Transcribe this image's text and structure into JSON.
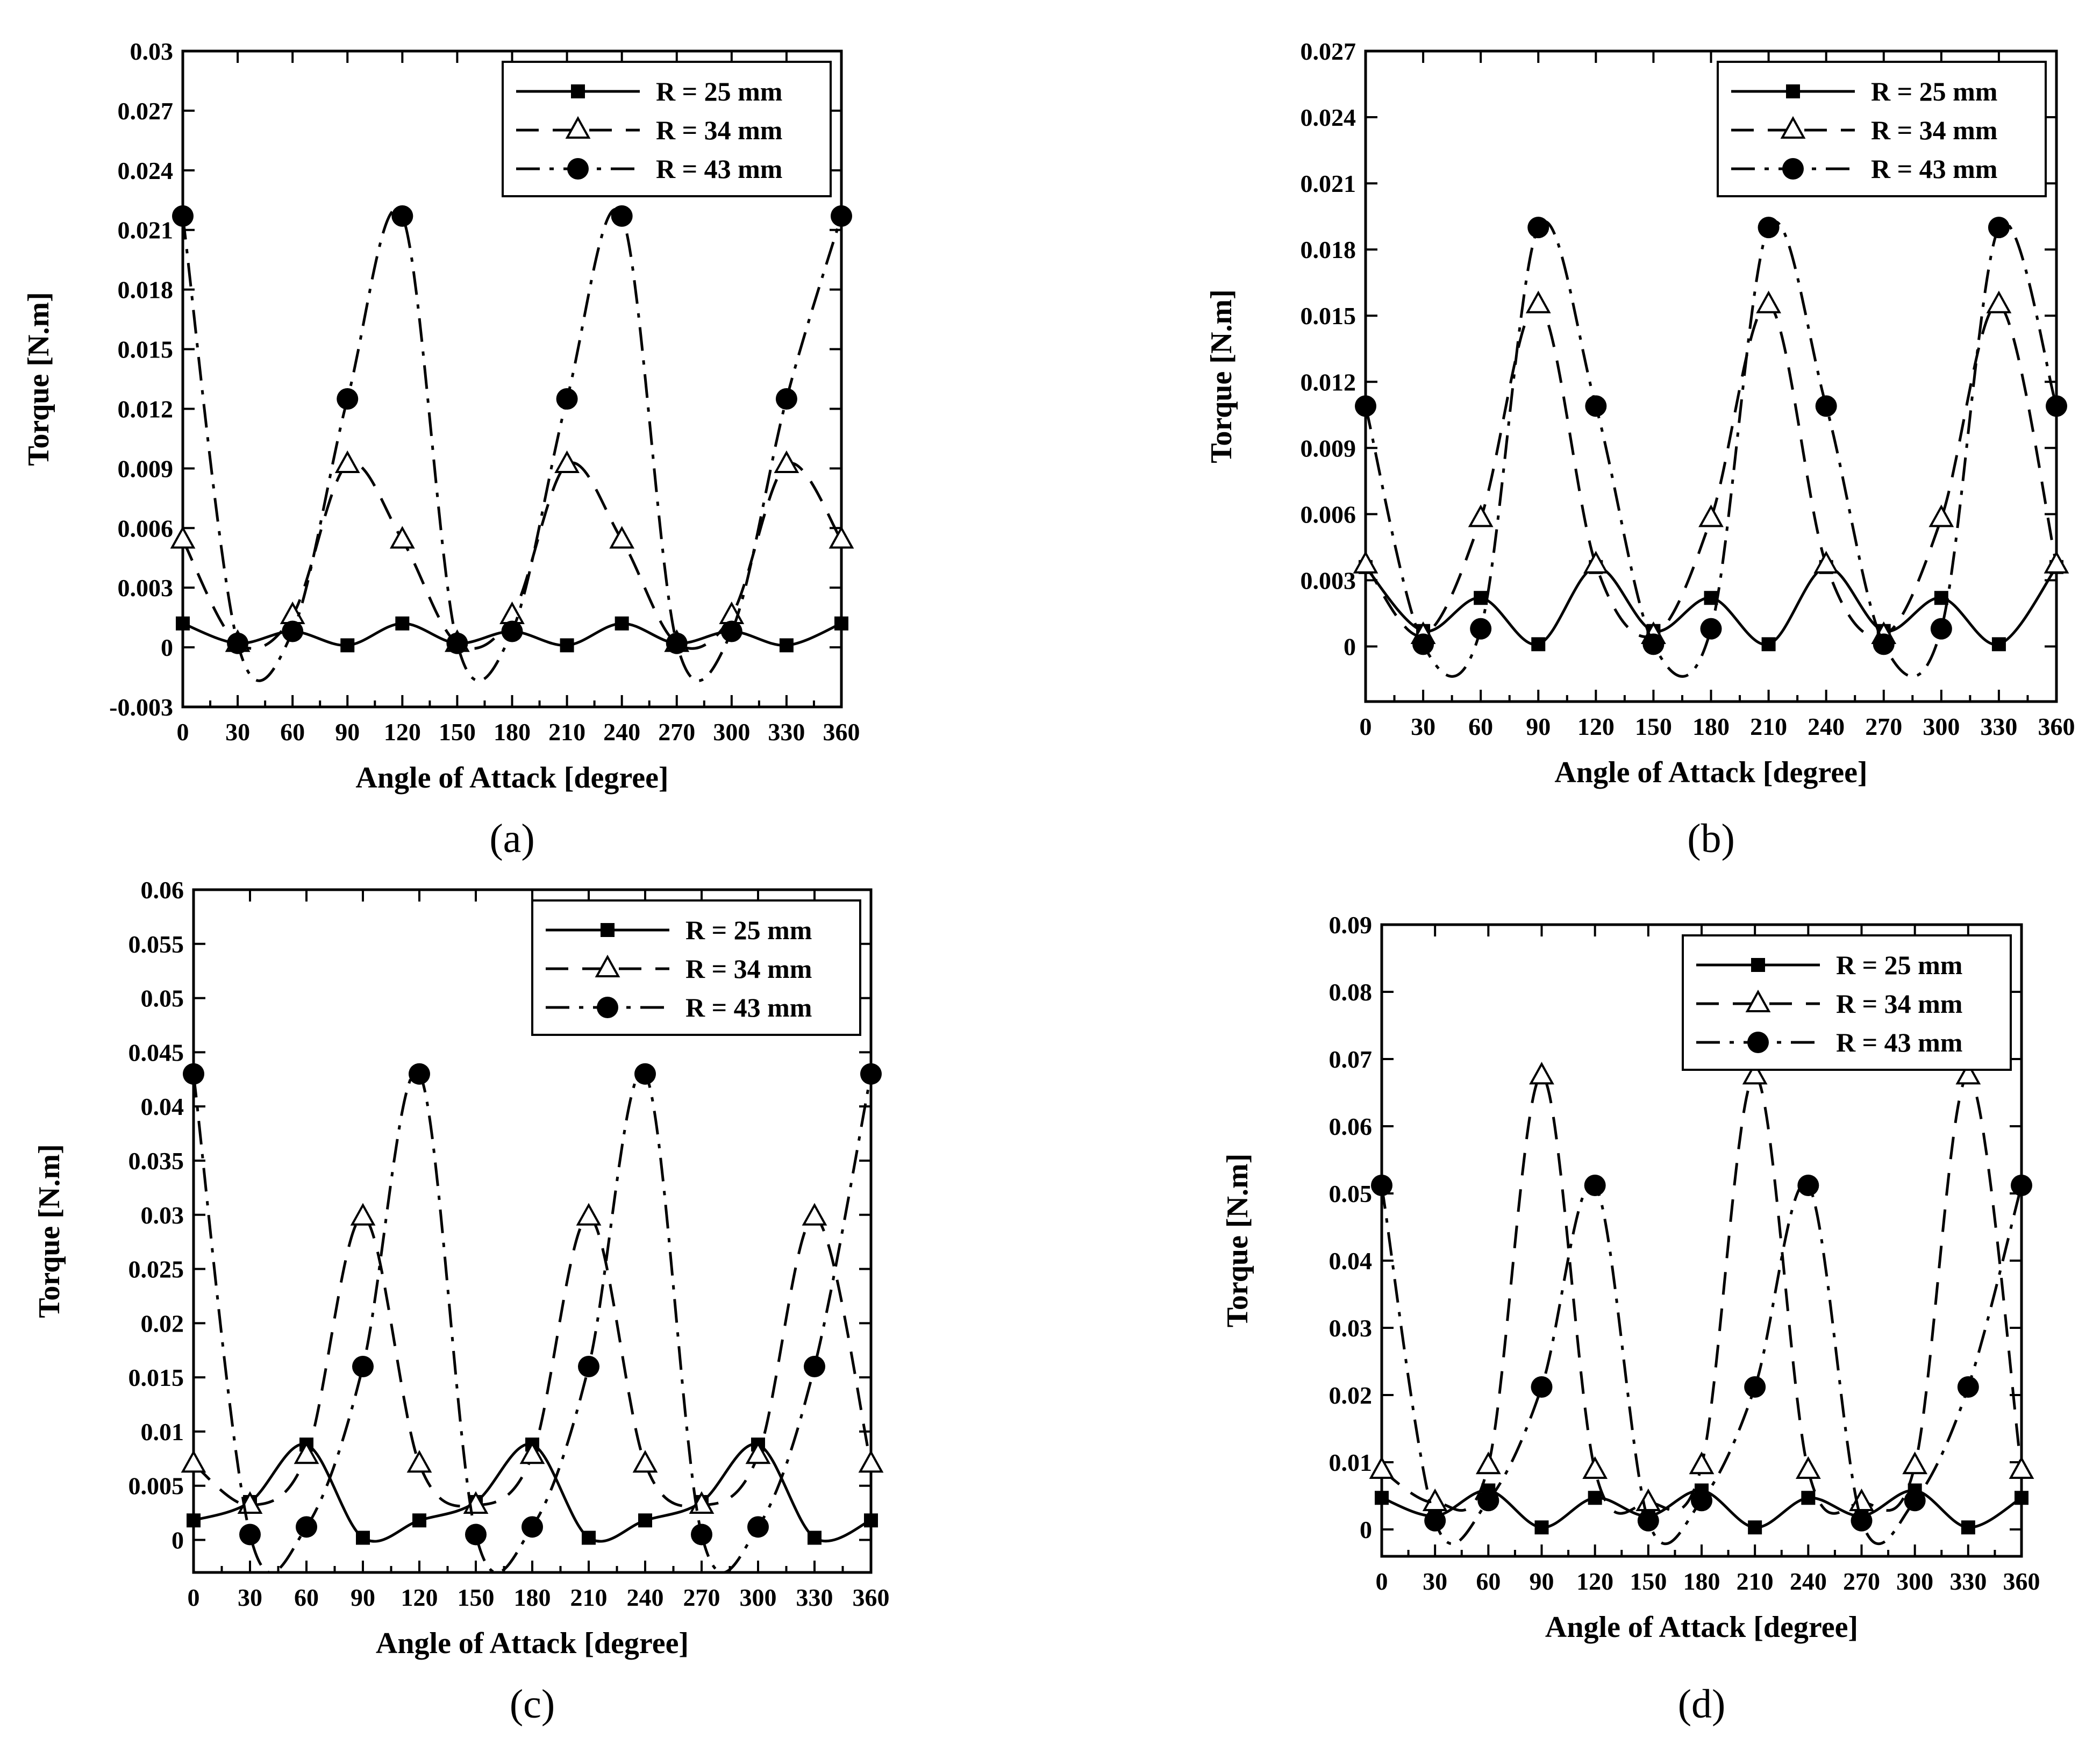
{
  "chart_data": [
    {
      "type": "line",
      "panel_label": "(a)",
      "xlabel": "Angle of Attack [degree]",
      "ylabel": "Torque [N.m]",
      "xlim": [
        0,
        360
      ],
      "ylim": [
        -0.003,
        0.03
      ],
      "x_ticks": [
        "0",
        "30",
        "60",
        "90",
        "120",
        "150",
        "180",
        "210",
        "240",
        "270",
        "300",
        "330",
        "360"
      ],
      "y_ticks": [
        -0.003,
        0,
        0.003,
        0.006,
        0.009,
        0.012,
        0.015,
        0.018,
        0.021,
        0.024,
        0.027,
        0.03
      ],
      "y_tick_labels": [
        "-0.003",
        "0",
        "0.003",
        "0.006",
        "0.009",
        "0.012",
        "0.015",
        "0.018",
        "0.021",
        "0.024",
        "0.027",
        "0.03"
      ],
      "legend_position": "top-right",
      "series": [
        {
          "name": "R = 25 mm",
          "marker": "square",
          "dash": "solid",
          "x": [
            0,
            30,
            60,
            90,
            120,
            150,
            180,
            210,
            240,
            270,
            300,
            330,
            360
          ],
          "values": [
            0.0012,
            0.0002,
            0.0008,
            0.0001,
            0.0012,
            0.0002,
            0.0008,
            0.0001,
            0.0012,
            0.0002,
            0.0008,
            0.0001,
            0.0012
          ]
        },
        {
          "name": "R = 34 mm",
          "marker": "triangle",
          "dash": "dashed",
          "x": [
            0,
            30,
            60,
            90,
            120,
            150,
            180,
            210,
            240,
            270,
            300,
            330,
            360
          ],
          "values": [
            0.0054,
            0.0002,
            0.0016,
            0.0092,
            0.0054,
            0.0002,
            0.0016,
            0.0092,
            0.0054,
            0.0002,
            0.0016,
            0.0092,
            0.0054
          ]
        },
        {
          "name": "R = 43 mm",
          "marker": "circle",
          "dash": "dashdot",
          "x": [
            0,
            30,
            60,
            90,
            120,
            150,
            180,
            210,
            240,
            270,
            300,
            330,
            360
          ],
          "values": [
            0.0217,
            0.0002,
            0.0008,
            0.0125,
            0.0217,
            0.0002,
            0.0008,
            0.0125,
            0.0217,
            0.0002,
            0.0008,
            0.0125,
            0.0217
          ]
        }
      ]
    },
    {
      "type": "line",
      "panel_label": "(b)",
      "xlabel": "Angle of Attack [degree]",
      "ylabel": "Torque [N.m]",
      "xlim": [
        0,
        360
      ],
      "ylim": [
        -0.0025,
        0.027
      ],
      "x_ticks": [
        "0",
        "30",
        "60",
        "90",
        "120",
        "150",
        "180",
        "210",
        "240",
        "270",
        "300",
        "330",
        "360"
      ],
      "y_ticks": [
        0,
        0.003,
        0.006,
        0.009,
        0.012,
        0.015,
        0.018,
        0.021,
        0.024,
        0.027
      ],
      "y_tick_labels": [
        "0",
        "0.003",
        "0.006",
        "0.009",
        "0.012",
        "0.015",
        "0.018",
        "0.021",
        "0.024",
        "0.027"
      ],
      "legend_position": "top-right",
      "series": [
        {
          "name": "R = 25 mm",
          "marker": "square",
          "dash": "solid",
          "x": [
            0,
            30,
            60,
            90,
            120,
            150,
            180,
            210,
            240,
            270,
            300,
            330,
            360
          ],
          "values": [
            0.0036,
            0.0007,
            0.0022,
            0.0001,
            0.0036,
            0.0007,
            0.0022,
            0.0001,
            0.0036,
            0.0007,
            0.0022,
            0.0001,
            0.0036
          ]
        },
        {
          "name": "R = 34 mm",
          "marker": "triangle",
          "dash": "dashed",
          "x": [
            0,
            30,
            60,
            90,
            120,
            150,
            180,
            210,
            240,
            270,
            300,
            330,
            360
          ],
          "values": [
            0.0037,
            0.0005,
            0.0058,
            0.0155,
            0.0037,
            0.0005,
            0.0058,
            0.0155,
            0.0037,
            0.0005,
            0.0058,
            0.0155,
            0.0037
          ]
        },
        {
          "name": "R = 43 mm",
          "marker": "circle",
          "dash": "dashdot",
          "x": [
            0,
            30,
            60,
            90,
            120,
            150,
            180,
            210,
            240,
            270,
            300,
            330,
            360
          ],
          "values": [
            0.0109,
            0.0001,
            0.0008,
            0.019,
            0.0109,
            0.0001,
            0.0008,
            0.019,
            0.0109,
            0.0001,
            0.0008,
            0.019,
            0.0109
          ]
        }
      ]
    },
    {
      "type": "line",
      "panel_label": "(c)",
      "xlabel": "Angle of Attack [degree]",
      "ylabel": "Torque [N.m]",
      "xlim": [
        0,
        360
      ],
      "ylim": [
        -0.003,
        0.06
      ],
      "x_ticks": [
        "0",
        "30",
        "60",
        "90",
        "120",
        "150",
        "180",
        "210",
        "240",
        "270",
        "300",
        "330",
        "360"
      ],
      "y_ticks": [
        0,
        0.005,
        0.01,
        0.015,
        0.02,
        0.025,
        0.03,
        0.035,
        0.04,
        0.045,
        0.05,
        0.055,
        0.06
      ],
      "y_tick_labels": [
        "0",
        "0.005",
        "0.01",
        "0.015",
        "0.02",
        "0.025",
        "0.03",
        "0.035",
        "0.04",
        "0.045",
        "0.05",
        "0.055",
        "0.06"
      ],
      "legend_position": "top-right",
      "series": [
        {
          "name": "R = 25 mm",
          "marker": "square",
          "dash": "solid",
          "x": [
            0,
            30,
            60,
            90,
            120,
            150,
            180,
            210,
            240,
            270,
            300,
            330,
            360
          ],
          "values": [
            0.0018,
            0.0035,
            0.0088,
            0.0002,
            0.0018,
            0.0035,
            0.0088,
            0.0002,
            0.0018,
            0.0035,
            0.0088,
            0.0002,
            0.0018
          ]
        },
        {
          "name": "R = 34 mm",
          "marker": "triangle",
          "dash": "dashed",
          "x": [
            0,
            30,
            60,
            90,
            120,
            150,
            180,
            210,
            240,
            270,
            300,
            330,
            360
          ],
          "values": [
            0.007,
            0.0032,
            0.0078,
            0.0298,
            0.007,
            0.0032,
            0.0078,
            0.0298,
            0.007,
            0.0032,
            0.0078,
            0.0298,
            0.007
          ]
        },
        {
          "name": "R = 43 mm",
          "marker": "circle",
          "dash": "dashdot",
          "x": [
            0,
            30,
            60,
            90,
            120,
            150,
            180,
            210,
            240,
            270,
            300,
            330,
            360
          ],
          "values": [
            0.043,
            0.0005,
            0.0012,
            0.016,
            0.043,
            0.0005,
            0.0012,
            0.016,
            0.043,
            0.0005,
            0.0012,
            0.016,
            0.043
          ]
        }
      ]
    },
    {
      "type": "line",
      "panel_label": "(d)",
      "xlabel": "Angle of Attack [degree]",
      "ylabel": "Torque [N.m]",
      "xlim": [
        0,
        360
      ],
      "ylim": [
        -0.004,
        0.09
      ],
      "x_ticks": [
        "0",
        "30",
        "60",
        "90",
        "120",
        "150",
        "180",
        "210",
        "240",
        "270",
        "300",
        "330",
        "360"
      ],
      "y_ticks": [
        0,
        0.01,
        0.02,
        0.03,
        0.04,
        0.05,
        0.06,
        0.07,
        0.08,
        0.09
      ],
      "y_tick_labels": [
        "0",
        "0.01",
        "0.02",
        "0.03",
        "0.04",
        "0.05",
        "0.06",
        "0.07",
        "0.08",
        "0.09"
      ],
      "legend_position": "top-right",
      "series": [
        {
          "name": "R = 25 mm",
          "marker": "square",
          "dash": "solid",
          "x": [
            0,
            30,
            60,
            90,
            120,
            150,
            180,
            210,
            240,
            270,
            300,
            330,
            360
          ],
          "values": [
            0.0047,
            0.002,
            0.0058,
            0.0003,
            0.0047,
            0.002,
            0.0058,
            0.0003,
            0.0047,
            0.002,
            0.0058,
            0.0003,
            0.0047
          ]
        },
        {
          "name": "R = 34 mm",
          "marker": "triangle",
          "dash": "dashed",
          "x": [
            0,
            30,
            60,
            90,
            120,
            150,
            180,
            210,
            240,
            270,
            300,
            330,
            360
          ],
          "values": [
            0.0088,
            0.004,
            0.0095,
            0.0675,
            0.0088,
            0.004,
            0.0095,
            0.0675,
            0.0088,
            0.004,
            0.0095,
            0.0675,
            0.0088
          ]
        },
        {
          "name": "R = 43 mm",
          "marker": "circle",
          "dash": "dashdot",
          "x": [
            0,
            30,
            60,
            90,
            120,
            150,
            180,
            210,
            240,
            270,
            300,
            330,
            360
          ],
          "values": [
            0.0512,
            0.0013,
            0.0043,
            0.0212,
            0.0512,
            0.0013,
            0.0043,
            0.0212,
            0.0512,
            0.0013,
            0.0043,
            0.0212,
            0.0512
          ]
        }
      ]
    }
  ]
}
